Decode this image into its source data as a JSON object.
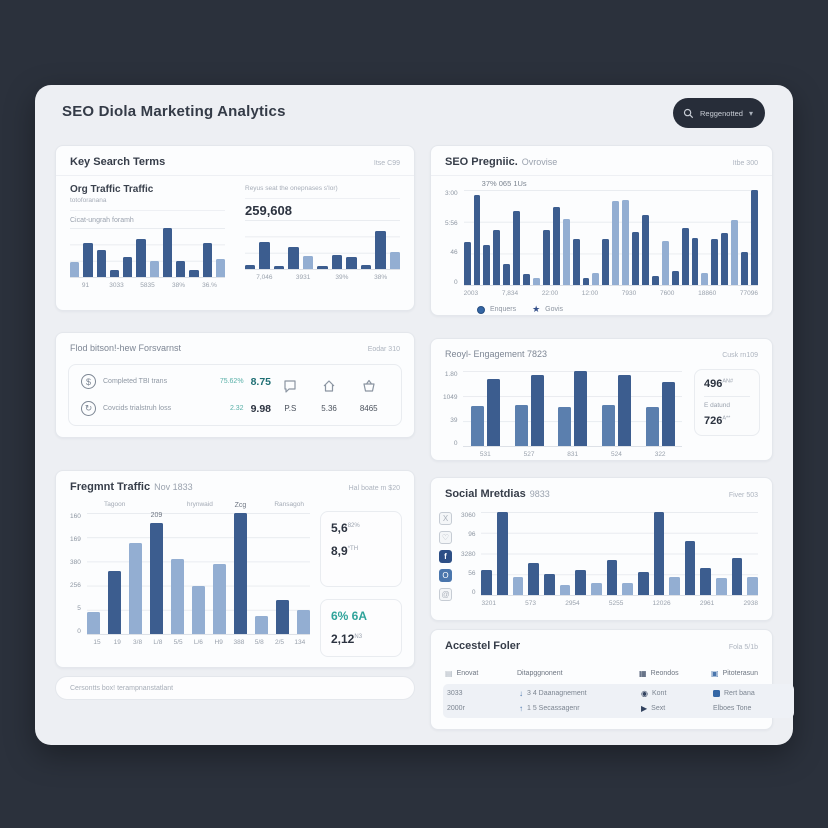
{
  "page": {
    "title": "SEO Diola Marketing Analytics"
  },
  "search": {
    "label": "Reggenotted"
  },
  "colors": {
    "page_bg": "#2b313c",
    "panel_bg": "#edeff3",
    "bar_dark": "#3c5d8f",
    "bar_light": "#93aed2",
    "accent_teal": "#2fa39a",
    "facebook_blue": "#2d4f86",
    "instagram_blue": "#4a76ad"
  },
  "cards": {
    "key_terms": {
      "title": "Key Search Terms",
      "meta": "Itse C99",
      "left": {
        "title": "Org Traffic Traffic",
        "subtitle": "totoforanana",
        "label": "Cicat-ungrah foramh"
      },
      "right": {
        "caption": "Reyus seat the onepnases s'lor)",
        "value": "259,608"
      }
    },
    "metrics": {
      "title": "Flod bitson!-hew Forsvarnst",
      "meta": "Eodar 310",
      "rows": [
        {
          "label": "Completed TBI trans",
          "pct": "75.62%",
          "value": "8.75"
        },
        {
          "label": "Covcids trialstruh loss",
          "pct": "2.32",
          "value": "9.98"
        }
      ],
      "stats": [
        {
          "icon": "chat-icon",
          "value": "P.S"
        },
        {
          "icon": "home-icon",
          "value": "5.36"
        },
        {
          "icon": "basket-icon",
          "value": "8465"
        }
      ]
    },
    "fragment": {
      "title": "Fregmnt Traffic",
      "subtitle": "Nov 1833",
      "meta": "Hal boate m $20",
      "columns": [
        "Tagoon",
        "hrynwaid",
        "Ransagoh"
      ],
      "panel1": {
        "v1": "5,6",
        "s1": "82%",
        "v2": "8,9",
        "s2": "*TH"
      },
      "panel2": {
        "v1": "6% 6A",
        "v2": "2,12",
        "s2": "N3"
      }
    },
    "footer_note": "Cersontts box! terampnanstatlant",
    "seo": {
      "title": "SEO Pregniic.",
      "subtitle": "Ovrovise",
      "meta": "Itbe 300",
      "annotation": "37% 065 1Us",
      "legend": [
        {
          "label": "Enquers"
        },
        {
          "label": "Govis"
        }
      ]
    },
    "engagement": {
      "title": "Reoyl- Engagement 7823",
      "meta": "Cusk rn109",
      "panel": {
        "v1": "496",
        "s1": "AN#",
        "mid": "E datund",
        "v2": "726",
        "s2": "A**"
      }
    },
    "social": {
      "title": "Social Mretdias",
      "subtitle": "9833",
      "meta": "Fiver 503",
      "icons": [
        "x-icon",
        "heart-icon",
        "facebook-icon",
        "instagram-icon",
        "at-icon"
      ]
    },
    "folder": {
      "title": "Accestel Foler",
      "meta": "Fola 5/1b",
      "headers": [
        "Enovat",
        "Ditapggnonent",
        "Reondos",
        "Pitoterasun"
      ],
      "rows": [
        [
          "3033",
          "3 4 Daanagnement",
          "Kont",
          "Rert bana"
        ],
        [
          "2000r",
          "1 5 Secassagenr",
          "Sext",
          "Elboes Tone"
        ]
      ]
    }
  },
  "chart_data": [
    {
      "id": "key_left",
      "type": "bar",
      "title": "Key Search Terms - left mini chart",
      "values": [
        30,
        70,
        55,
        15,
        40,
        78,
        33,
        100,
        33,
        15,
        70,
        36
      ],
      "shades": [
        "l",
        "d",
        "d",
        "d",
        "d",
        "d",
        "l",
        "d",
        "d",
        "d",
        "d",
        "l"
      ],
      "x_tick_labels": [
        "91",
        "3033",
        "5835",
        "38%",
        "36.%"
      ],
      "ylim": [
        0,
        100
      ],
      "grid": true,
      "values_unit": "percent-of-plot-height"
    },
    {
      "id": "key_right",
      "type": "bar",
      "title": "Key Search Terms - right mini chart",
      "values": [
        10,
        55,
        8,
        45,
        28,
        8,
        30,
        25,
        10,
        78,
        35
      ],
      "shades": [
        "d",
        "d",
        "d",
        "d",
        "l",
        "d",
        "d",
        "d",
        "d",
        "d",
        "l"
      ],
      "x_tick_labels": [
        "7,046",
        "3931",
        "39%",
        "38%"
      ],
      "ylim": [
        0,
        100
      ],
      "grid": true,
      "values_unit": "percent-of-plot-height"
    },
    {
      "id": "seo",
      "type": "bar",
      "title": "SEO Pregniic. Ovrovise",
      "values": [
        45,
        95,
        42,
        58,
        22,
        78,
        12,
        7,
        58,
        82,
        70,
        48,
        7,
        13,
        48,
        88,
        90,
        56,
        74,
        9,
        46,
        15,
        60,
        50,
        13,
        48,
        55,
        68,
        35,
        100
      ],
      "shades": [
        "d",
        "d",
        "d",
        "d",
        "d",
        "d",
        "d",
        "l",
        "d",
        "d",
        "l",
        "d",
        "d",
        "l",
        "d",
        "l",
        "l",
        "d",
        "d",
        "d",
        "l",
        "d",
        "d",
        "d",
        "l",
        "d",
        "d",
        "l",
        "d",
        "d"
      ],
      "y_tick_labels": [
        "3:00",
        "5:56",
        "46",
        "0"
      ],
      "x_tick_labels": [
        "2003",
        "7,834",
        "22:00",
        "12:00",
        "7930",
        "7600",
        "18860",
        "77096"
      ],
      "annotation": "37% 065 1Us",
      "legend": [
        "Enquers",
        "Govis"
      ],
      "legend_position": "bottom",
      "ylim": [
        0,
        100
      ],
      "grid": true,
      "values_unit": "percent-of-plot-height"
    },
    {
      "id": "engagement",
      "type": "bar",
      "title": "Reoyl- Engagement 7823",
      "groups": [
        [
          54,
          90
        ],
        [
          55,
          95
        ],
        [
          52,
          100
        ],
        [
          55,
          95
        ],
        [
          52,
          85
        ]
      ],
      "categories": [
        "531",
        "527",
        "831",
        "524",
        "322"
      ],
      "y_tick_labels": [
        "1.80",
        "1049",
        "39",
        "0"
      ],
      "ylim": [
        0,
        100
      ],
      "grid": true,
      "values_unit": "percent-of-plot-height"
    },
    {
      "id": "social",
      "type": "bar",
      "title": "Social Mretdias 9833",
      "values": [
        30,
        100,
        22,
        38,
        25,
        12,
        30,
        15,
        42,
        15,
        28,
        100,
        22,
        65,
        33,
        20,
        45,
        22
      ],
      "shades": [
        "d",
        "d",
        "l",
        "d",
        "d",
        "l",
        "d",
        "l",
        "d",
        "l",
        "d",
        "d",
        "l",
        "d",
        "d",
        "l",
        "d",
        "l"
      ],
      "y_tick_labels": [
        "3060",
        "96",
        "3280",
        "56",
        "0"
      ],
      "x_tick_labels": [
        "3201",
        "573",
        "2954",
        "5255",
        "12026",
        "2961",
        "2938"
      ],
      "ylim": [
        0,
        100
      ],
      "grid": true,
      "values_unit": "percent-of-plot-height"
    },
    {
      "id": "fragment",
      "type": "bar",
      "title": "Fregmnt Traffic Nov 1833",
      "values": [
        18,
        52,
        75,
        92,
        62,
        40,
        58,
        100,
        15,
        28,
        20
      ],
      "shades": [
        "l",
        "d",
        "l",
        "d",
        "l",
        "l",
        "l",
        "d",
        "l",
        "d",
        "l"
      ],
      "bar_labels": {
        "3": "209",
        "7": "Zcg"
      },
      "x_tick_labels": [
        "15",
        "19",
        "3/8",
        "L/8",
        "5/5",
        "L/6",
        "H9",
        "388",
        "5/8",
        "2/5",
        "134"
      ],
      "y_tick_labels": [
        "160",
        "169",
        "380",
        "256",
        "5",
        "0"
      ],
      "ylim": [
        0,
        100
      ],
      "grid": true,
      "values_unit": "percent-of-plot-height"
    }
  ]
}
